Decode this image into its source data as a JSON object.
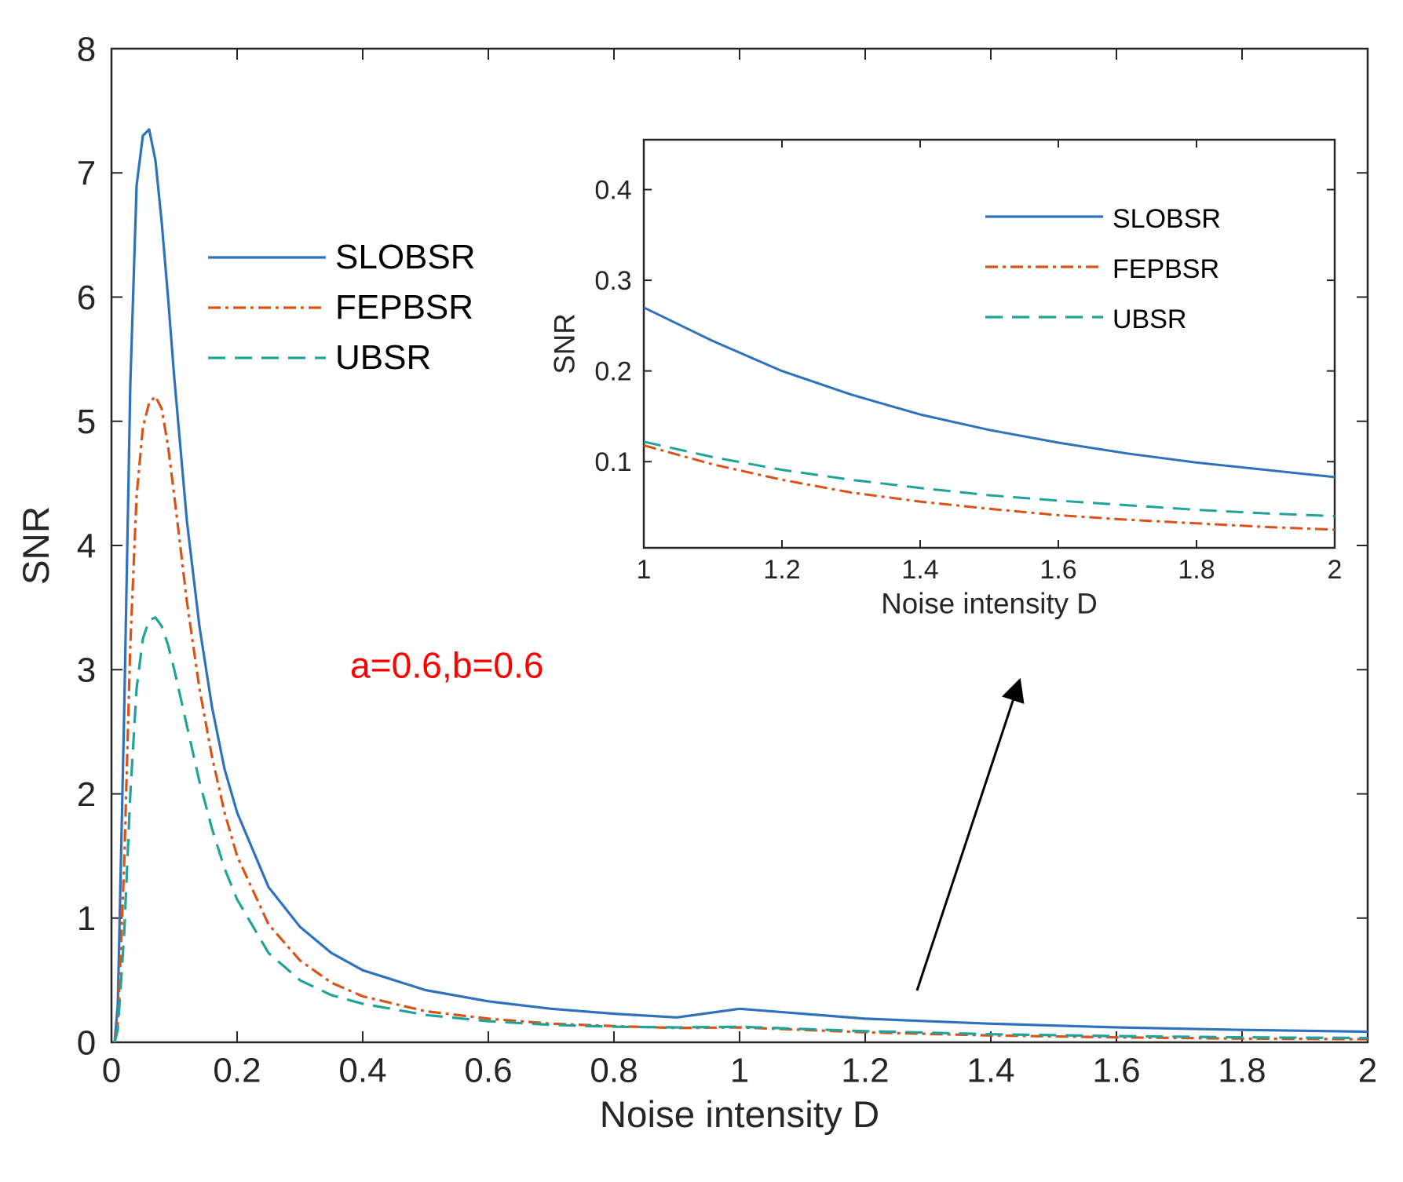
{
  "chart_data": [
    {
      "id": "main",
      "type": "line",
      "title": "",
      "xlabel": "Noise intensity D",
      "ylabel": "SNR",
      "xlim": [
        0,
        2
      ],
      "ylim": [
        0,
        8
      ],
      "xticks": [
        0,
        0.2,
        0.4,
        0.6,
        0.8,
        1,
        1.2,
        1.4,
        1.6,
        1.8,
        2
      ],
      "xtick_labels": [
        "0",
        "0.2",
        "0.4",
        "0.6",
        "0.8",
        "1",
        "1.2",
        "1.4",
        "1.6",
        "1.8",
        "2"
      ],
      "yticks": [
        0,
        1,
        2,
        3,
        4,
        5,
        6,
        7,
        8
      ],
      "ytick_labels": [
        "0",
        "1",
        "2",
        "3",
        "4",
        "5",
        "6",
        "7",
        "8"
      ],
      "legend_position": "upper-left",
      "annotation": {
        "text": "a=0.6,b=0.6",
        "color": "#ff0000",
        "x": 0.28,
        "y": 3.0
      },
      "series": [
        {
          "name": "SLOBSR",
          "color": "#2e72bd",
          "style": "solid",
          "x": [
            0.005,
            0.01,
            0.02,
            0.03,
            0.04,
            0.05,
            0.06,
            0.07,
            0.08,
            0.09,
            0.1,
            0.12,
            0.14,
            0.16,
            0.18,
            0.2,
            0.25,
            0.3,
            0.35,
            0.4,
            0.5,
            0.6,
            0.7,
            0.8,
            0.9,
            1.0,
            1.2,
            1.4,
            1.6,
            1.8,
            2.0
          ],
          "values": [
            0.0,
            0.3,
            2.6,
            5.3,
            6.9,
            7.3,
            7.35,
            7.1,
            6.6,
            6.0,
            5.35,
            4.2,
            3.35,
            2.7,
            2.2,
            1.85,
            1.25,
            0.93,
            0.72,
            0.58,
            0.42,
            0.33,
            0.27,
            0.23,
            0.2,
            0.27,
            0.19,
            0.15,
            0.12,
            0.1,
            0.085
          ]
        },
        {
          "name": "FEPBSR",
          "color": "#d95319",
          "style": "dashdot",
          "x": [
            0.005,
            0.01,
            0.02,
            0.03,
            0.04,
            0.05,
            0.06,
            0.07,
            0.08,
            0.09,
            0.1,
            0.12,
            0.14,
            0.16,
            0.18,
            0.2,
            0.25,
            0.3,
            0.35,
            0.4,
            0.5,
            0.6,
            0.7,
            0.8,
            0.9,
            1.0,
            1.2,
            1.4,
            1.6,
            1.8,
            2.0
          ],
          "values": [
            0.0,
            0.15,
            1.4,
            3.2,
            4.4,
            4.95,
            5.15,
            5.2,
            5.1,
            4.8,
            4.4,
            3.55,
            2.85,
            2.3,
            1.85,
            1.5,
            0.95,
            0.66,
            0.48,
            0.37,
            0.25,
            0.19,
            0.15,
            0.13,
            0.115,
            0.12,
            0.08,
            0.055,
            0.04,
            0.03,
            0.025
          ]
        },
        {
          "name": "UBSR",
          "color": "#20a39a",
          "style": "dashed",
          "x": [
            0.005,
            0.01,
            0.02,
            0.03,
            0.04,
            0.05,
            0.06,
            0.07,
            0.08,
            0.09,
            0.1,
            0.12,
            0.14,
            0.16,
            0.18,
            0.2,
            0.25,
            0.3,
            0.35,
            0.4,
            0.5,
            0.6,
            0.7,
            0.8,
            0.9,
            1.0,
            1.2,
            1.4,
            1.6,
            1.8,
            2.0
          ],
          "values": [
            0.0,
            0.1,
            0.85,
            2.0,
            2.85,
            3.25,
            3.4,
            3.42,
            3.35,
            3.2,
            3.0,
            2.55,
            2.1,
            1.72,
            1.4,
            1.15,
            0.72,
            0.5,
            0.38,
            0.31,
            0.22,
            0.17,
            0.14,
            0.125,
            0.12,
            0.125,
            0.09,
            0.065,
            0.05,
            0.04,
            0.035
          ]
        }
      ]
    },
    {
      "id": "inset",
      "type": "line",
      "title": "",
      "xlabel": "Noise intensity D",
      "ylabel": "SNR",
      "xlim": [
        1,
        2
      ],
      "ylim": [
        0.005,
        0.455
      ],
      "xticks": [
        1,
        1.2,
        1.4,
        1.6,
        1.8,
        2
      ],
      "xtick_labels": [
        "1",
        "1.2",
        "1.4",
        "1.6",
        "1.8",
        "2"
      ],
      "yticks": [
        0.1,
        0.2,
        0.3,
        0.4
      ],
      "ytick_labels": [
        "0.1",
        "0.2",
        "0.3",
        "0.4"
      ],
      "legend_position": "top-right",
      "series": [
        {
          "name": "SLOBSR",
          "color": "#2e72bd",
          "style": "solid",
          "x": [
            1.0,
            1.1,
            1.2,
            1.3,
            1.4,
            1.5,
            1.6,
            1.7,
            1.8,
            1.9,
            2.0
          ],
          "values": [
            0.27,
            0.233,
            0.2,
            0.174,
            0.152,
            0.135,
            0.121,
            0.109,
            0.099,
            0.091,
            0.083
          ]
        },
        {
          "name": "FEPBSR",
          "color": "#d95319",
          "style": "dashdot",
          "x": [
            1.0,
            1.1,
            1.2,
            1.3,
            1.4,
            1.5,
            1.6,
            1.7,
            1.8,
            1.9,
            2.0
          ],
          "values": [
            0.118,
            0.097,
            0.08,
            0.066,
            0.056,
            0.048,
            0.041,
            0.036,
            0.032,
            0.028,
            0.025
          ]
        },
        {
          "name": "UBSR",
          "color": "#20a39a",
          "style": "dashed",
          "x": [
            1.0,
            1.1,
            1.2,
            1.3,
            1.4,
            1.5,
            1.6,
            1.7,
            1.8,
            1.9,
            2.0
          ],
          "values": [
            0.122,
            0.105,
            0.091,
            0.08,
            0.071,
            0.063,
            0.057,
            0.052,
            0.047,
            0.043,
            0.04
          ]
        }
      ]
    }
  ]
}
